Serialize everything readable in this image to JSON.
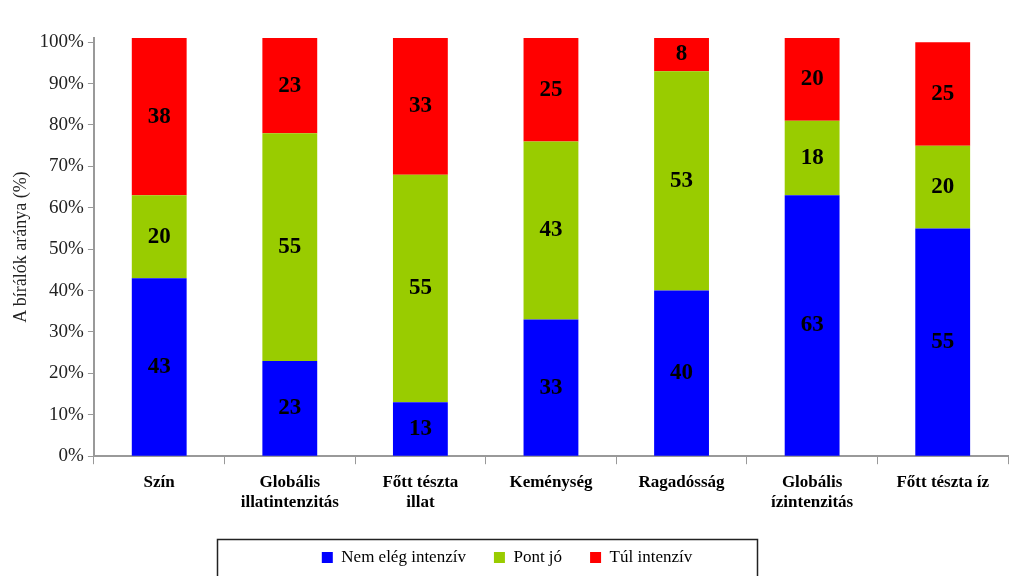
{
  "chart_data": {
    "type": "bar",
    "stacked": true,
    "categories": [
      "Szín",
      "Globális illatintenzitás",
      "Főtt tészta illat",
      "Keménység",
      "Ragadósság",
      "Globális ízintenzitás",
      "Főtt tészta íz"
    ],
    "series": [
      {
        "name": "Nem elég intenzív",
        "color": "#0000ff",
        "values": [
          43,
          23,
          13,
          33,
          40,
          63,
          55
        ]
      },
      {
        "name": "Pont jó",
        "color": "#99cc00",
        "values": [
          20,
          55,
          55,
          43,
          53,
          18,
          20
        ]
      },
      {
        "name": "Túl intenzív",
        "color": "#ff0000",
        "values": [
          38,
          23,
          33,
          25,
          8,
          20,
          25
        ]
      }
    ],
    "ylabel": "A bírálók aránya (%)",
    "ylim": [
      0,
      101
    ],
    "yticks": [
      {
        "value": 0,
        "label": "0%"
      },
      {
        "value": 10,
        "label": "10%"
      },
      {
        "value": 20,
        "label": "20%"
      },
      {
        "value": 30,
        "label": "30%"
      },
      {
        "value": 40,
        "label": "40%"
      },
      {
        "value": 50,
        "label": "50%"
      },
      {
        "value": 60,
        "label": "60%"
      },
      {
        "value": 70,
        "label": "70%"
      },
      {
        "value": 80,
        "label": "80%"
      },
      {
        "value": 90,
        "label": "90%"
      },
      {
        "value": 100,
        "label": "100%"
      }
    ],
    "legend": "bottom",
    "data_labels": true
  }
}
